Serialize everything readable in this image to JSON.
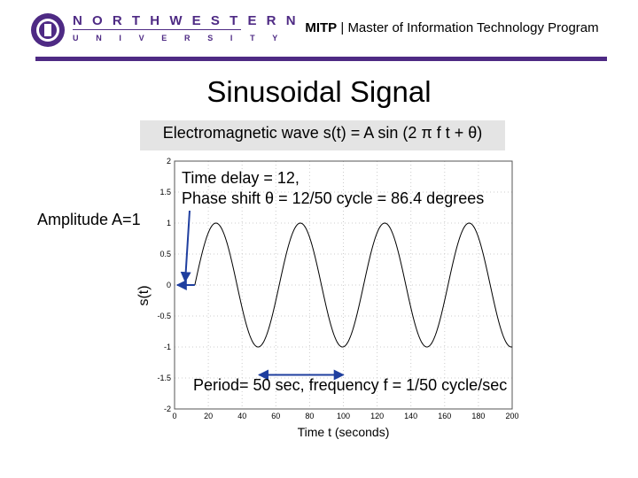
{
  "header": {
    "logo_line1": "NORTHWESTERN",
    "logo_line2": "UNIVERSITY",
    "program_abbrev": "MITP",
    "program_separator": " | ",
    "program_name": "Master of Information Technology Program",
    "bar_color": "#4e2a84"
  },
  "slide": {
    "title": "Sinusoidal Signal",
    "equation": "Electromagnetic wave s(t) = A sin (2 π f t + θ)"
  },
  "annotations": {
    "time_delay": "Time delay = 12,",
    "phase_shift": "Phase shift θ = 12/50 cycle = 86.4 degrees",
    "amplitude": "Amplitude A=1",
    "period": "Period= 50 sec, frequency f = 1/50 cycle/sec"
  },
  "chart_data": {
    "type": "line",
    "title": "",
    "xlabel": "Time t (seconds)",
    "ylabel": "s(t)",
    "xlim": [
      0,
      200
    ],
    "ylim": [
      -2,
      2
    ],
    "x_ticks": [
      "0",
      "20",
      "40",
      "60",
      "80",
      "100",
      "120",
      "140",
      "160",
      "180",
      "200"
    ],
    "y_ticks": [
      "2",
      "1.5",
      "1",
      "0.5",
      "0",
      "-0.5",
      "-1",
      "-1.5",
      "-2"
    ],
    "grid": true,
    "series": [
      {
        "amplitude": 1,
        "period": 50,
        "delay": 12,
        "x_start": 12,
        "x_end": 200,
        "color": "#000000"
      }
    ],
    "annotations": [
      {
        "kind": "arrow-to-axis",
        "x_from": 12,
        "x_to": 0,
        "y": 0,
        "color": "#1f3f9f"
      },
      {
        "kind": "span",
        "x_from": 50,
        "x_to": 100,
        "y": -1.45,
        "color": "#1f3f9f"
      }
    ]
  }
}
